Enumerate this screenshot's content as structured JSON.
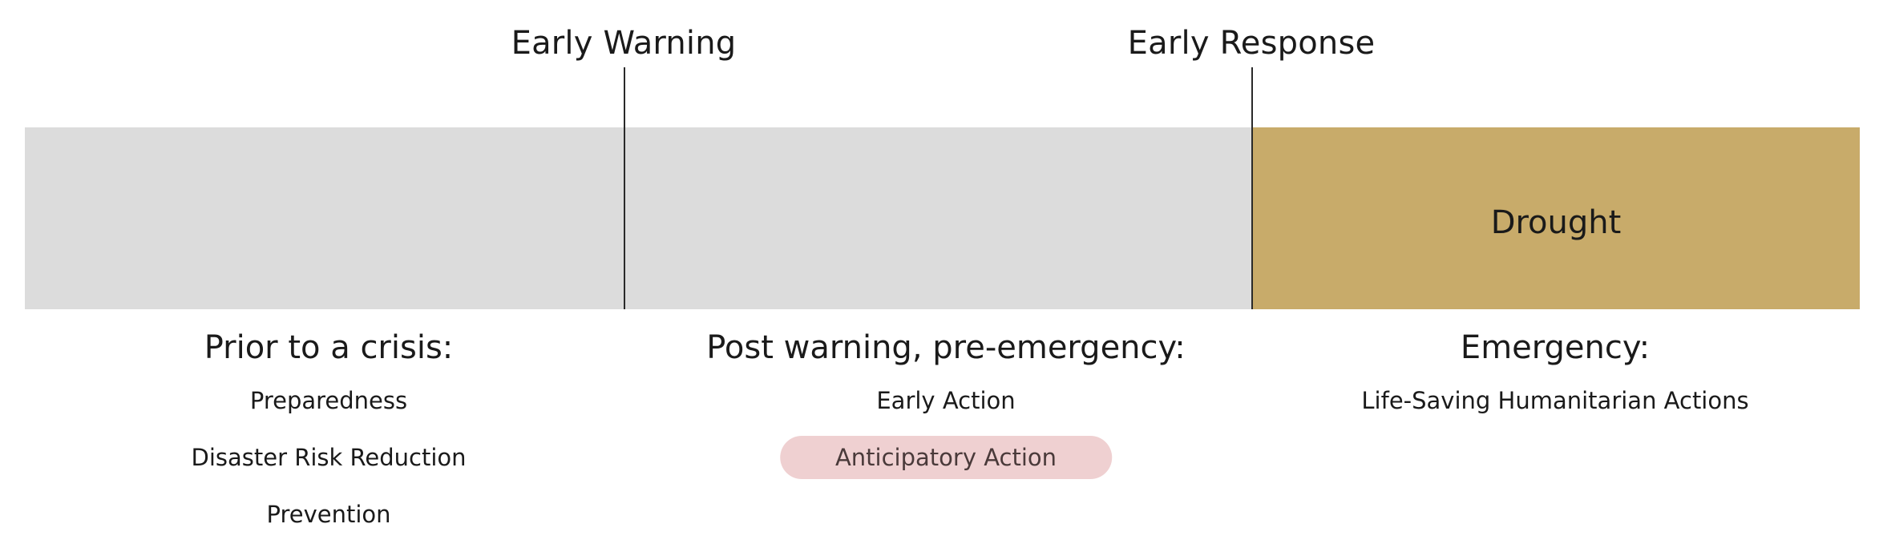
{
  "markers": {
    "early_warning": "Early Warning",
    "early_response": "Early Response"
  },
  "bands": {
    "drought_label": "Drought",
    "grey_color": "#dcdcdc",
    "drought_color": "#c8ab6a"
  },
  "phases": [
    {
      "title": "Prior to a crisis:",
      "items": [
        "Preparedness",
        "Disaster Risk Reduction",
        "Prevention"
      ]
    },
    {
      "title": "Post warning, pre-emergency:",
      "items": [
        "Early Action",
        "Anticipatory Action"
      ],
      "highlighted_item": "Anticipatory Action",
      "highlight_color": "#efd0d1"
    },
    {
      "title": "Emergency:",
      "items": [
        "Life-Saving Humanitarian Actions"
      ]
    }
  ]
}
